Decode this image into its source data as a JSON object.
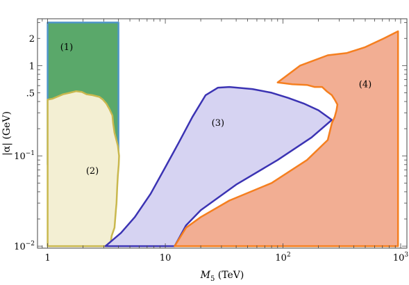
{
  "chart_data": {
    "type": "area",
    "title": "",
    "xlabel": "M",
    "xlabel_sub": "5",
    "xlabel_unit": " (TeV)",
    "ylabel": "|α| (GeV)",
    "xscale": "log",
    "yscale": "log",
    "xlim": [
      0.82,
      1130
    ],
    "ylim": [
      0.0095,
      3.3
    ],
    "grid": false,
    "legend": "none",
    "x_ticks": [
      {
        "value": 1,
        "label": "1"
      },
      {
        "value": 10,
        "label": "10"
      },
      {
        "value": 100,
        "label": "10",
        "sup": "2"
      },
      {
        "value": 1000,
        "label": "10",
        "sup": "3"
      }
    ],
    "y_ticks": [
      {
        "value": 0.01,
        "label": "10",
        "sup": "−2"
      },
      {
        "value": 0.1,
        "label": "10",
        "sup": "−1"
      },
      {
        "value": 0.5,
        "label": ".5"
      },
      {
        "value": 1,
        "label": "1"
      },
      {
        "value": 2,
        "label": "2"
      }
    ],
    "regions": [
      {
        "name": "(1)",
        "fill": "#5aa86a",
        "stroke": "#4e95c8",
        "label_at": [
          1.45,
          1.6
        ],
        "points": [
          [
            1.0,
            3.0
          ],
          [
            4.0,
            3.0
          ],
          [
            4.0,
            0.08
          ],
          [
            1.0,
            0.08
          ]
        ]
      },
      {
        "name": "(2)",
        "fill": "#f3efd3",
        "stroke": "#c9b84e",
        "label_at": [
          2.4,
          0.068
        ],
        "points": [
          [
            1.0,
            0.01
          ],
          [
            3.4,
            0.01
          ],
          [
            3.5,
            0.013
          ],
          [
            3.7,
            0.016
          ],
          [
            3.75,
            0.02
          ],
          [
            3.8,
            0.025
          ],
          [
            3.85,
            0.03
          ],
          [
            3.9,
            0.045
          ],
          [
            3.95,
            0.06
          ],
          [
            4.02,
            0.08
          ],
          [
            4.05,
            0.1
          ],
          [
            3.95,
            0.13
          ],
          [
            3.7,
            0.18
          ],
          [
            3.6,
            0.23
          ],
          [
            3.55,
            0.28
          ],
          [
            3.35,
            0.33
          ],
          [
            3.15,
            0.38
          ],
          [
            2.95,
            0.42
          ],
          [
            2.75,
            0.45
          ],
          [
            2.4,
            0.47
          ],
          [
            2.15,
            0.48
          ],
          [
            1.95,
            0.51
          ],
          [
            1.75,
            0.52
          ],
          [
            1.55,
            0.5
          ],
          [
            1.35,
            0.48
          ],
          [
            1.1,
            0.43
          ],
          [
            1.0,
            0.42
          ]
        ]
      },
      {
        "name": "(3)",
        "fill": "#d6d3f2",
        "stroke": "#3b33b3",
        "label_at": [
          28,
          0.23
        ],
        "points": [
          [
            3.1,
            0.01
          ],
          [
            4.2,
            0.014
          ],
          [
            5.5,
            0.021
          ],
          [
            7.5,
            0.038
          ],
          [
            10,
            0.075
          ],
          [
            13,
            0.14
          ],
          [
            17,
            0.27
          ],
          [
            22,
            0.47
          ],
          [
            28,
            0.57
          ],
          [
            35,
            0.58
          ],
          [
            55,
            0.55
          ],
          [
            80,
            0.5
          ],
          [
            110,
            0.44
          ],
          [
            150,
            0.38
          ],
          [
            200,
            0.32
          ],
          [
            260,
            0.25
          ],
          [
            175,
            0.16
          ],
          [
            90,
            0.09
          ],
          [
            40,
            0.048
          ],
          [
            20,
            0.025
          ],
          [
            15,
            0.017
          ],
          [
            12,
            0.01
          ]
        ]
      },
      {
        "name": "(4)",
        "fill": "#f2ae93",
        "stroke": "#f57f1f",
        "label_at": [
          500,
          0.62
        ],
        "points": [
          [
            12,
            0.01
          ],
          [
            15,
            0.016
          ],
          [
            20,
            0.021
          ],
          [
            35,
            0.032
          ],
          [
            80,
            0.05
          ],
          [
            160,
            0.09
          ],
          [
            240,
            0.15
          ],
          [
            260,
            0.23
          ],
          [
            275,
            0.27
          ],
          [
            285,
            0.32
          ],
          [
            290,
            0.37
          ],
          [
            275,
            0.42
          ],
          [
            260,
            0.47
          ],
          [
            235,
            0.52
          ],
          [
            215,
            0.58
          ],
          [
            185,
            0.58
          ],
          [
            160,
            0.61
          ],
          [
            120,
            0.62
          ],
          [
            90,
            0.65
          ],
          [
            140,
            1.0
          ],
          [
            240,
            1.3
          ],
          [
            350,
            1.38
          ],
          [
            500,
            1.6
          ],
          [
            720,
            2.0
          ],
          [
            950,
            2.4
          ],
          [
            950,
            0.01
          ]
        ]
      }
    ]
  }
}
